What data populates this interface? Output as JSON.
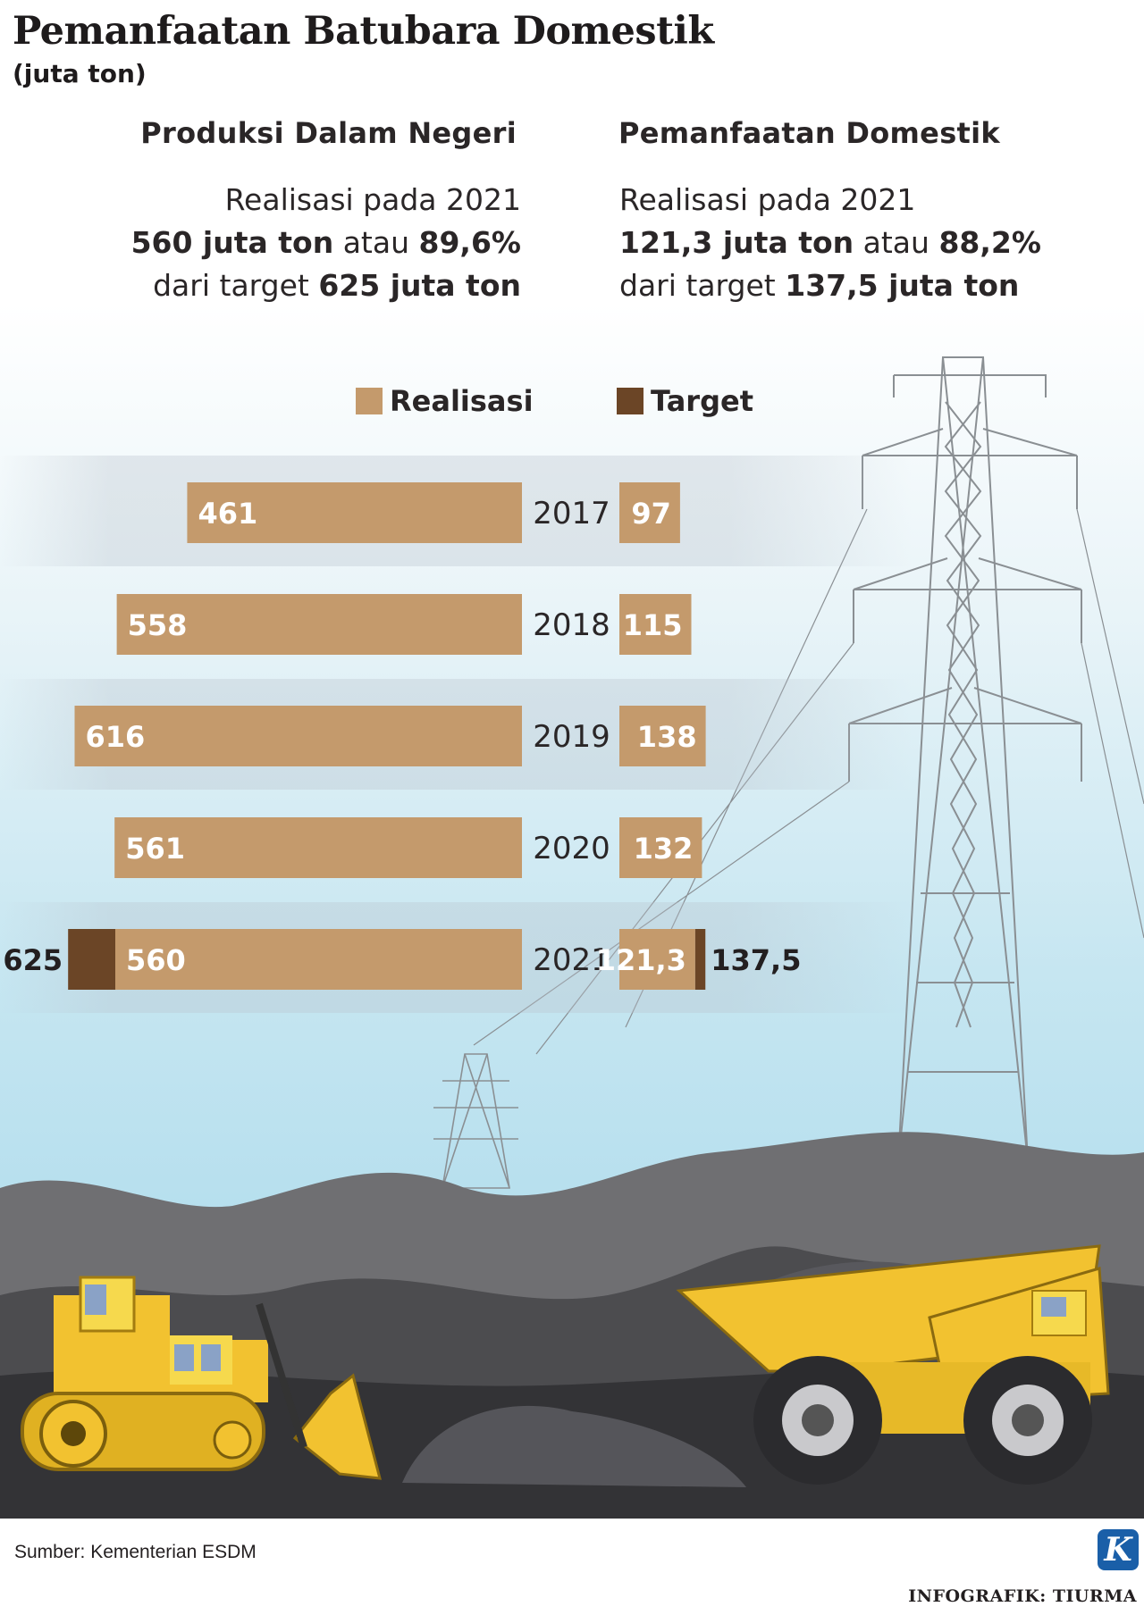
{
  "title": "Pemanfaatan Batubara Domestik",
  "unit": "(juta ton)",
  "columns": {
    "left": {
      "heading": "Produksi Dalam Negeri",
      "line1": "Realisasi pada 2021",
      "line2_bold": "560 juta ton",
      "line2_mid": " atau ",
      "line2_pct": "89,6%",
      "line3_pre": "dari target ",
      "line3_bold": "625 juta ton"
    },
    "right": {
      "heading": "Pemanfaatan Domestik",
      "line1": "Realisasi pada 2021",
      "line2_bold": "121,3 juta ton",
      "line2_mid": " atau ",
      "line2_pct": "88,2%",
      "line3_pre": "dari target ",
      "line3_bold": "137,5 juta ton"
    }
  },
  "legend": [
    {
      "label": "Realisasi",
      "color": "#c49a6c"
    },
    {
      "label": "Target",
      "color": "#6b4526"
    }
  ],
  "colors": {
    "realisasi": "#c49a6c",
    "target": "#6b4526",
    "label_on_bar": "#ffffff"
  },
  "chart_data": {
    "type": "bar",
    "categories": [
      "2017",
      "2018",
      "2019",
      "2020",
      "2021"
    ],
    "series": [
      {
        "name": "Produksi Dalam Negeri",
        "realisasi": [
          "461",
          "558",
          "616",
          "561",
          "560"
        ],
        "target": [
          null,
          null,
          null,
          null,
          "625"
        ]
      },
      {
        "name": "Pemanfaatan Domestik",
        "realisasi": [
          "97",
          "115",
          "138",
          "132",
          "121,3"
        ],
        "target": [
          null,
          null,
          null,
          null,
          "137,5"
        ]
      }
    ],
    "legend": [
      "Realisasi",
      "Target"
    ],
    "legend_position": "top"
  },
  "footer": {
    "source": "Sumber: Kementerian ESDM",
    "credit": "INFOGRAFIK: TIURMA",
    "logo": "K"
  }
}
